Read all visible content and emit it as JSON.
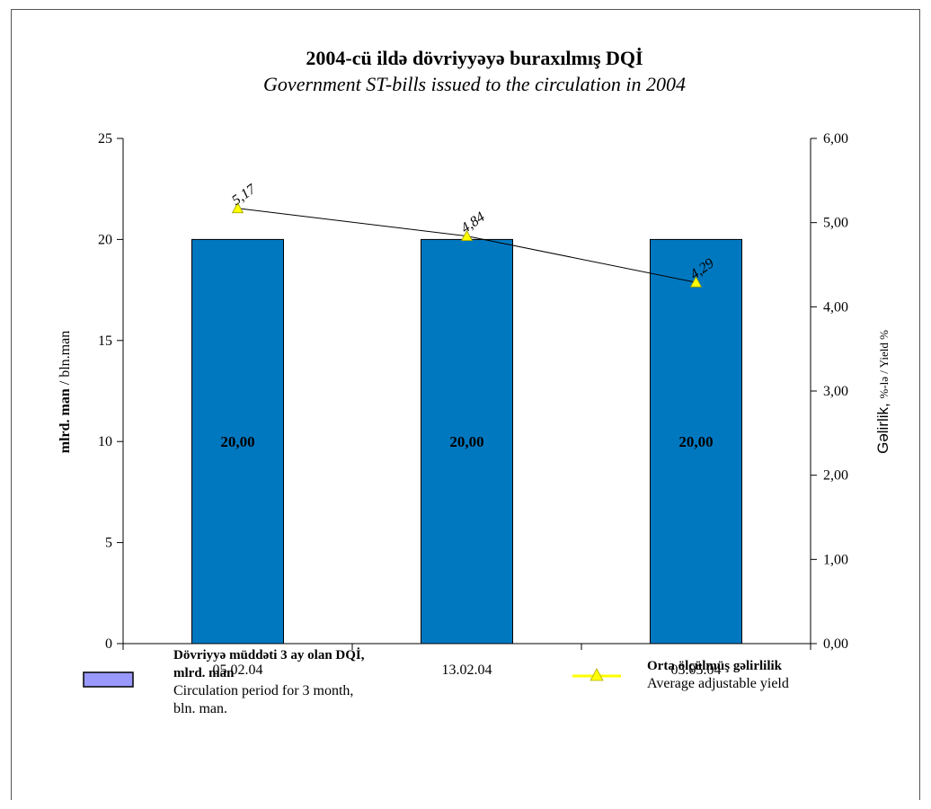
{
  "chart_data": {
    "type": "bar",
    "title": "2004-cü ildə dövriyyəyə buraxılmış DQİ",
    "subtitle": "Government ST-bills issued to the circulation in 2004",
    "categories": [
      "05.02.04",
      "13.02.04",
      "05.05.04"
    ],
    "series": [
      {
        "type": "bar",
        "axis": "left",
        "values": [
          20,
          20,
          20
        ],
        "data_labels": [
          "20,00",
          "20,00",
          "20,00"
        ],
        "color": "#0078c0",
        "legend_bold": "Dövriyyə müddəti 3 ay olan DQİ,",
        "legend_bold_2": "mlrd. man",
        "legend_normal": "Circulation period for 3 month,",
        "legend_normal_2": "bln. man."
      },
      {
        "type": "line",
        "axis": "right",
        "values": [
          5.17,
          4.84,
          4.29
        ],
        "data_labels": [
          "5,17",
          "4,84",
          "4,29"
        ],
        "color": "#ffff00",
        "line_color": "#000000",
        "legend_bold": "Orta ölçülmüş gəlirlilik",
        "legend_normal": "Average adjustable yield"
      }
    ],
    "y_left": {
      "label_bold": "mlrd. man",
      "label_normal": " / bln.man",
      "ylim": [
        0,
        25
      ],
      "ticks": [
        0,
        5,
        10,
        15,
        20,
        25
      ],
      "tick_labels": [
        "0",
        "5",
        "10",
        "15",
        "20",
        "25"
      ]
    },
    "y_right": {
      "label_main": "Gəlirlik, ",
      "label_small": "%-lə / Yield %",
      "ylim": [
        0,
        6
      ],
      "ticks": [
        0,
        1,
        2,
        3,
        4,
        5,
        6
      ],
      "tick_labels": [
        "0,00",
        "1,00",
        "2,00",
        "3,00",
        "4,00",
        "5,00",
        "6,00"
      ]
    },
    "legend_position": "bottom",
    "grid": false
  }
}
